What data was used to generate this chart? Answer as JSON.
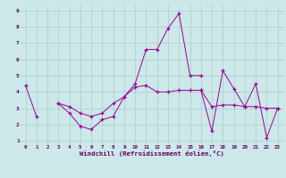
{
  "xlabel": "Windchill (Refroidissement éolien,°C)",
  "x": [
    0,
    1,
    2,
    3,
    4,
    5,
    6,
    7,
    8,
    9,
    10,
    11,
    12,
    13,
    14,
    15,
    16,
    17,
    18,
    19,
    20,
    21,
    22,
    23
  ],
  "line1": [
    4.4,
    2.5,
    null,
    3.3,
    2.7,
    1.9,
    1.7,
    2.3,
    2.5,
    3.7,
    4.5,
    6.6,
    6.6,
    7.9,
    8.8,
    5.0,
    5.0,
    null,
    null,
    null,
    null,
    null,
    null,
    null
  ],
  "line2": [
    null,
    null,
    null,
    3.3,
    3.1,
    2.7,
    2.5,
    2.7,
    3.3,
    3.7,
    4.3,
    4.4,
    4.0,
    4.0,
    4.1,
    4.1,
    4.1,
    3.1,
    3.2,
    3.2,
    3.1,
    3.1,
    3.0,
    3.0
  ],
  "line3": [
    null,
    null,
    null,
    null,
    null,
    null,
    null,
    null,
    null,
    null,
    null,
    null,
    null,
    null,
    null,
    null,
    4.1,
    1.6,
    5.3,
    4.2,
    3.1,
    4.5,
    1.2,
    3.0
  ],
  "bg_color": "#cce8e8",
  "grid_color": "#aacccc",
  "line_color": "#990099",
  "tick_color": "#660066",
  "label_color": "#660066",
  "ylim_min": 0.8,
  "ylim_max": 9.3,
  "xlim_min": -0.5,
  "xlim_max": 23.5
}
